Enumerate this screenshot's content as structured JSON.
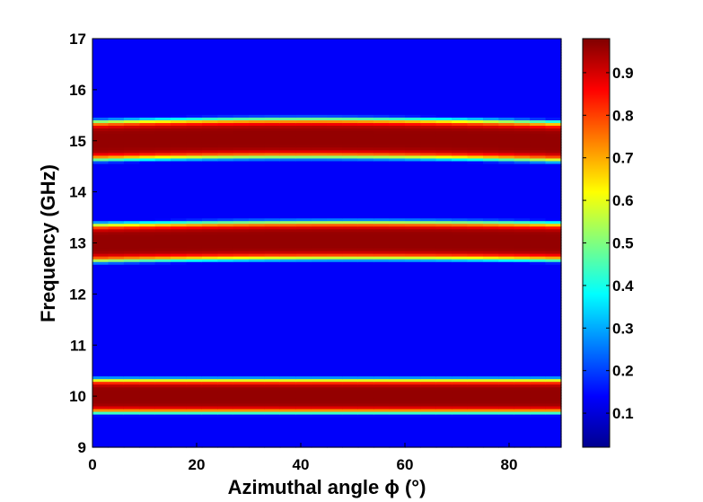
{
  "chart_data": {
    "type": "heatmap",
    "title": "",
    "xlabel": "Azimuthal angle ϕ (°)",
    "ylabel": "Frequency (GHz)",
    "xlim": [
      0,
      90
    ],
    "ylim": [
      9,
      17
    ],
    "x_ticks": [
      "0",
      "20",
      "40",
      "60",
      "80"
    ],
    "y_ticks": [
      "9",
      "10",
      "11",
      "12",
      "13",
      "14",
      "15",
      "16",
      "17"
    ],
    "colorbar": {
      "colormap": "jet",
      "range": [
        0.02,
        0.98
      ],
      "ticks": [
        "0.1",
        "0.2",
        "0.3",
        "0.4",
        "0.5",
        "0.6",
        "0.7",
        "0.8",
        "0.9"
      ]
    },
    "bands": [
      {
        "center_ghz_at_0": 15.0,
        "center_ghz_at_45": 15.05,
        "center_ghz_at_90": 14.98,
        "width_ghz": 0.75,
        "peak": 0.98
      },
      {
        "center_ghz_at_0": 13.0,
        "center_ghz_at_45": 13.05,
        "center_ghz_at_90": 13.02,
        "width_ghz": 0.72,
        "peak": 0.98
      },
      {
        "center_ghz_at_0": 10.0,
        "center_ghz_at_45": 10.0,
        "center_ghz_at_90": 10.0,
        "width_ghz": 0.65,
        "peak": 0.98
      }
    ],
    "background_value": 0.12,
    "grid": false
  }
}
